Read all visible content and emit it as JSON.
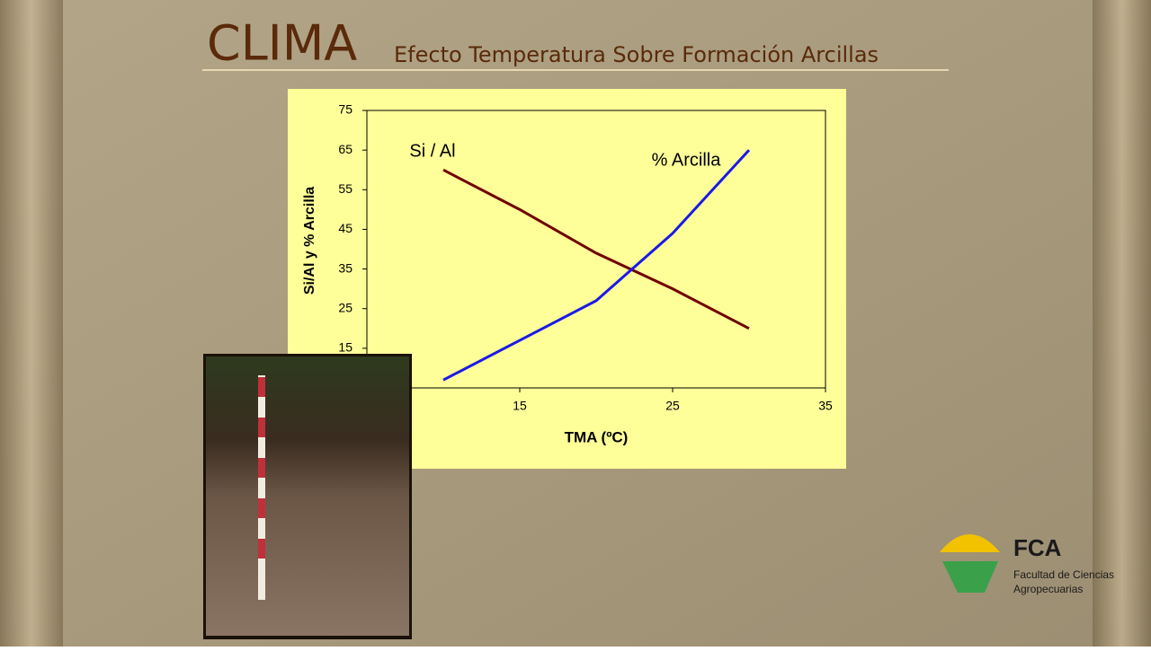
{
  "chart_data": {
    "type": "line",
    "title": "CLIMA",
    "subtitle": "Efecto Temperatura Sobre Formación Arcillas",
    "x_label": "TMA (ºC)",
    "y_label": "Si/Al  y  % Arcilla",
    "x": [
      10,
      15,
      20,
      25,
      30
    ],
    "series": [
      {
        "name": "Si / Al",
        "color": "#700000",
        "values": [
          60,
          50,
          39,
          30,
          20
        ]
      },
      {
        "name": "% Arcilla",
        "color": "#1a1ae6",
        "values": [
          7,
          17,
          27,
          44,
          65
        ]
      }
    ],
    "xlim": [
      5,
      35
    ],
    "xticks": [
      15,
      25,
      35
    ],
    "ylim": [
      5,
      75
    ],
    "yticks": [
      15,
      25,
      35,
      45,
      55,
      65,
      75
    ]
  },
  "logo": {
    "name": "FCA",
    "line1": "Facultad de Ciencias",
    "line2": "Agropecuarias"
  }
}
